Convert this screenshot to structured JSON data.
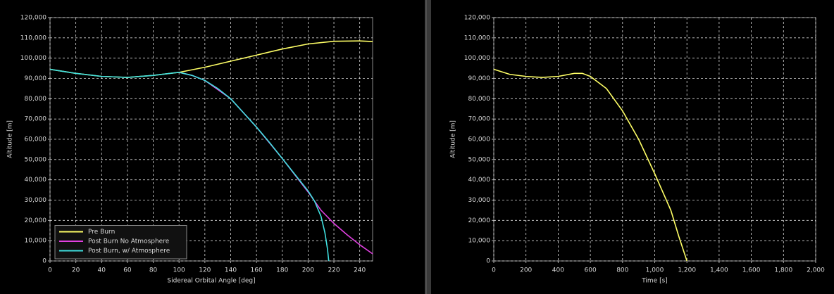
{
  "chart_data": [
    {
      "type": "line",
      "xlabel": "Sidereal Orbital Angle [deg]",
      "ylabel": "Altitude [m]",
      "xlim": [
        0,
        250
      ],
      "xticks": [
        0,
        20,
        40,
        60,
        80,
        100,
        120,
        140,
        160,
        180,
        200,
        220,
        240
      ],
      "ylim": [
        0,
        120000
      ],
      "yticks": [
        0,
        {
          "value": 10000,
          "label": "10,000"
        },
        {
          "value": 20000,
          "label": "20,000"
        },
        {
          "value": 30000,
          "label": "30,000"
        },
        {
          "value": 40000,
          "label": "40,000"
        },
        {
          "value": 50000,
          "label": "50,000"
        },
        {
          "value": 60000,
          "label": "60,000"
        },
        {
          "value": 70000,
          "label": "70,000"
        },
        {
          "value": 80000,
          "label": "80,000"
        },
        {
          "value": 90000,
          "label": "90,000"
        },
        {
          "value": 100000,
          "label": "100,000"
        },
        {
          "value": 110000,
          "label": "110,000"
        },
        {
          "value": 120000,
          "label": "120,000"
        }
      ],
      "grid": true,
      "legend": "lower left",
      "series": [
        {
          "name": "Pre Burn",
          "color": "#ffff66",
          "x": [
            0,
            20,
            40,
            60,
            80,
            100,
            120,
            140,
            160,
            180,
            200,
            220,
            240,
            250
          ],
          "values": [
            94500,
            92500,
            91000,
            90500,
            91500,
            93000,
            95500,
            98500,
            101500,
            104500,
            107000,
            108300,
            108500,
            108200
          ]
        },
        {
          "name": "Post Burn No Atmosphere",
          "color": "#e040e0",
          "x": [
            100,
            110,
            120,
            140,
            160,
            180,
            200,
            210,
            220,
            230,
            240,
            250
          ],
          "values": [
            93000,
            91500,
            89000,
            80000,
            66000,
            50500,
            34000,
            25000,
            18500,
            13000,
            8000,
            3500
          ]
        },
        {
          "name": "Post Burn, w/ Atmosphere",
          "color": "#40e0e0",
          "x": [
            0,
            20,
            40,
            60,
            80,
            100,
            110,
            120,
            130,
            140,
            150,
            160,
            170,
            180,
            190,
            200,
            205,
            210,
            213,
            215,
            216
          ],
          "values": [
            94500,
            92500,
            91000,
            90500,
            91500,
            93000,
            91500,
            89000,
            85000,
            80000,
            73000,
            66000,
            58500,
            50500,
            42500,
            34500,
            29500,
            22000,
            14000,
            6000,
            0
          ]
        }
      ]
    },
    {
      "type": "line",
      "xlabel": "Time [s]",
      "ylabel": "Altitude [m]",
      "xlim": [
        0,
        2000
      ],
      "xticks": [
        0,
        200,
        400,
        600,
        800,
        {
          "value": 1000,
          "label": "1,000"
        },
        {
          "value": 1200,
          "label": "1,200"
        },
        {
          "value": 1400,
          "label": "1,400"
        },
        {
          "value": 1600,
          "label": "1,600"
        },
        {
          "value": 1800,
          "label": "1,800"
        },
        {
          "value": 2000,
          "label": "2,000"
        }
      ],
      "ylim": [
        0,
        120000
      ],
      "yticks": [
        0,
        {
          "value": 10000,
          "label": "10,000"
        },
        {
          "value": 20000,
          "label": "20,000"
        },
        {
          "value": 30000,
          "label": "30,000"
        },
        {
          "value": 40000,
          "label": "40,000"
        },
        {
          "value": 50000,
          "label": "50,000"
        },
        {
          "value": 60000,
          "label": "60,000"
        },
        {
          "value": 70000,
          "label": "70,000"
        },
        {
          "value": 80000,
          "label": "80,000"
        },
        {
          "value": 90000,
          "label": "90,000"
        },
        {
          "value": 100000,
          "label": "100,000"
        },
        {
          "value": 110000,
          "label": "110,000"
        },
        {
          "value": 120000,
          "label": "120,000"
        }
      ],
      "grid": true,
      "color": "#ffff66",
      "x": [
        0,
        100,
        200,
        300,
        400,
        500,
        550,
        600,
        700,
        800,
        900,
        1000,
        1100,
        1150,
        1200
      ],
      "values": [
        94500,
        92000,
        91000,
        90500,
        91000,
        92500,
        92500,
        91000,
        85000,
        74000,
        60000,
        43000,
        25000,
        12000,
        0
      ]
    }
  ]
}
